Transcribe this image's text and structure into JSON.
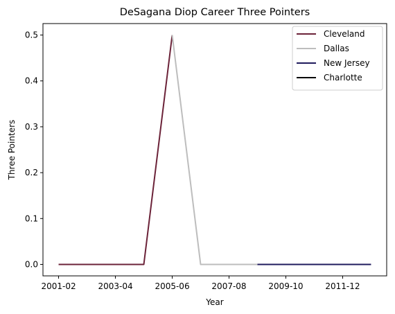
{
  "chart_data": {
    "type": "line",
    "title": "DeSagana Diop Career Three Pointers",
    "xlabel": "Year",
    "ylabel": "Three Pointers",
    "x_ticks": [
      "2001-02",
      "2003-04",
      "2005-06",
      "2007-08",
      "2009-10",
      "2011-12"
    ],
    "y_ticks": [
      "0.0",
      "0.1",
      "0.2",
      "0.3",
      "0.4",
      "0.5"
    ],
    "ylim": [
      -0.025,
      0.525
    ],
    "grid": false,
    "legend_position": "top-right",
    "series": [
      {
        "name": "Cleveland",
        "color": "#6b2238",
        "points": [
          {
            "x": "2001-02",
            "y": 0.0
          },
          {
            "x": "2002-03",
            "y": 0.0
          },
          {
            "x": "2003-04",
            "y": 0.0
          },
          {
            "x": "2004-05",
            "y": 0.0
          },
          {
            "x": "2005-06",
            "y": 0.5
          }
        ]
      },
      {
        "name": "Dallas",
        "color": "#bdbdbd",
        "points": [
          {
            "x": "2005-06",
            "y": 0.5
          },
          {
            "x": "2006-07",
            "y": 0.0
          },
          {
            "x": "2007-08",
            "y": 0.0
          },
          {
            "x": "2008-09",
            "y": 0.0
          }
        ]
      },
      {
        "name": "New Jersey",
        "color": "#1f1a5c",
        "points": [
          {
            "x": "2008-09",
            "y": 0.0
          },
          {
            "x": "2009-10",
            "y": 0.0
          },
          {
            "x": "2010-11",
            "y": 0.0
          },
          {
            "x": "2011-12",
            "y": 0.0
          },
          {
            "x": "2012-13",
            "y": 0.0
          }
        ]
      },
      {
        "name": "Charlotte",
        "color": "#000000",
        "points": []
      }
    ]
  }
}
